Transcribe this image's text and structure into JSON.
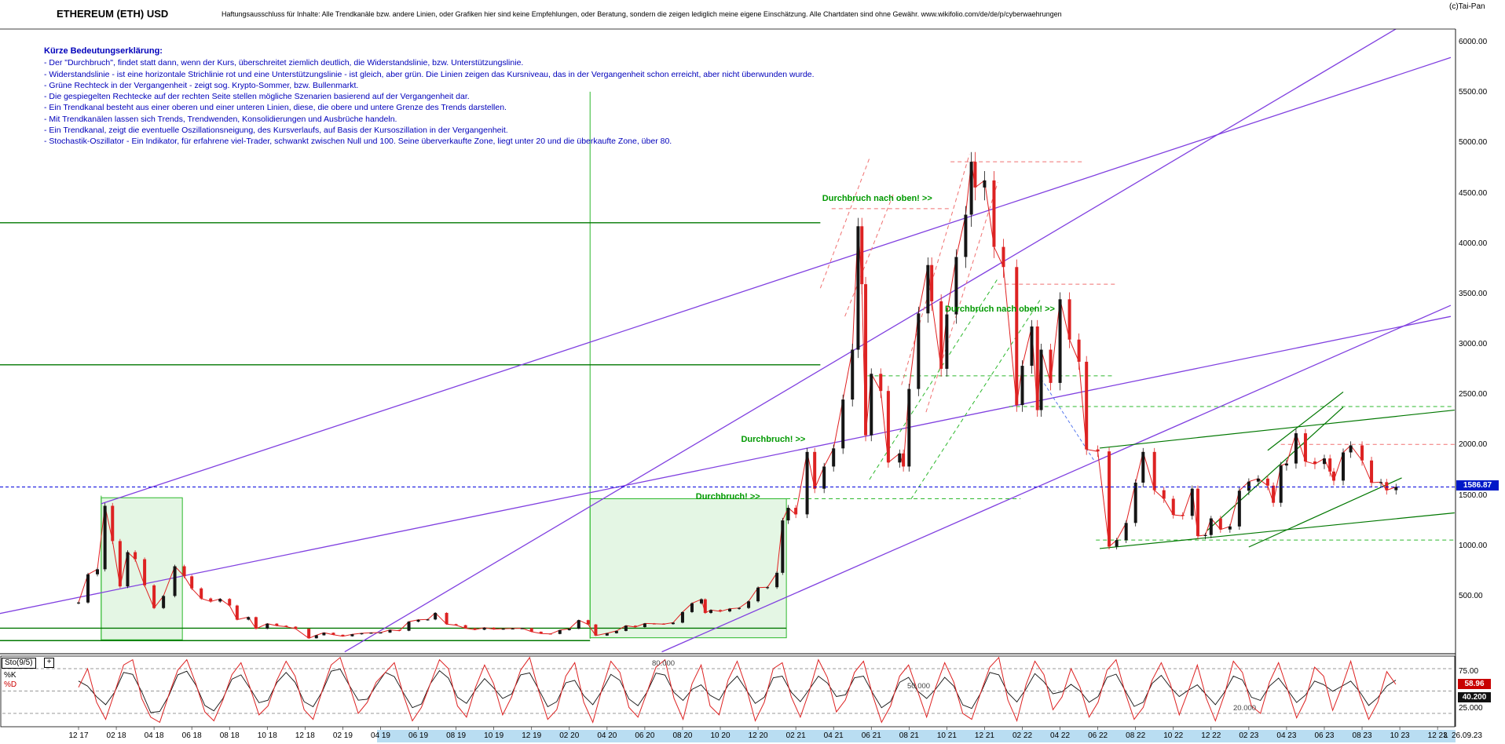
{
  "header": {
    "title": "ETHEREUM (ETH) USD",
    "disclaimer": "Haftungsausschluss für Inhalte: Alle Trendkanäle bzw. andere Linien, oder Grafiken hier sind keine Empfehlungen, oder Beratung, sondern die zeigen lediglich meine eigene Einschätzung. Alle Chartdaten sind ohne Gewähr.  www.wikifolio.com/de/de/p/cyberwaehrungen",
    "copyright": "(c)Tai-Pan"
  },
  "legend": {
    "heading": "Kürze Bedeutungserklärung:",
    "lines": [
      "- Der \"Durchbruch\", findet statt dann, wenn der Kurs, überschreitet ziemlich deutlich, die Widerstandslinie, bzw. Unterstützungslinie.",
      "- Widerstandslinie - ist eine horizontale Strichlinie rot und eine Unterstützungslinie - ist gleich, aber grün. Die Linien zeigen das Kursniveau, das in der Vergangenheit schon erreicht, aber nicht überwunden wurde.",
      "- Grüne Rechteck in der Vergangenheit - zeigt sog. Krypto-Sommer, bzw. Bullenmarkt.",
      "- Die gespiegelten Rechtecke auf der rechten Seite stellen mögliche Szenarien basierend auf der Vergangenheit dar.",
      "- Ein Trendkanal besteht aus einer oberen und einer unteren Linien, diese, die obere und untere Grenze des Trends darstellen.",
      "- Mit Trendkanälen lassen sich Trends, Trendwenden, Konsolidierungen und Ausbrüche handeln.",
      "- Ein Trendkanal, zeigt die eventuelle Oszillationsneigung, des Kursverlaufs, auf Basis der Kursoszillation in der Vergangenheit.",
      "- Stochastik-Oszillator - Ein Indikator, für erfahrene viel-Trader, schwankt zwischen Null und 100. Seine überverkaufte Zone, liegt unter 20 und die überkaufte Zone, über 80."
    ]
  },
  "colors": {
    "violet": "#8040e0",
    "green_dark": "#007700",
    "green_bright": "#2db82d",
    "rect_fill": "#e4f6e4",
    "red_dash": "#f07070",
    "blue_line": "#0000dd",
    "candle_up": "#151515",
    "candle_down": "#dd2222",
    "close_line": "#e02020",
    "osc_k": "#dd2222",
    "osc_d": "#111111",
    "annotation": "#009900",
    "badge_blue": "#0018c8",
    "badge_red": "#c80000",
    "badge_black": "#111111",
    "scrollbar": "#b9ddf2"
  },
  "chart_data": {
    "type": "candlestick",
    "title": "ETHEREUM (ETH) USD",
    "x_axis": {
      "months_start": "2017-12",
      "tick_labels": [
        "12 17",
        "02 18",
        "04 18",
        "06 18",
        "08 18",
        "10 18",
        "12 18",
        "02 19",
        "04 19",
        "06 19",
        "08 19",
        "10 19",
        "12 19",
        "02 20",
        "04 20",
        "06 20",
        "08 20",
        "10 20",
        "12 20",
        "02 21",
        "04 21",
        "06 21",
        "08 21",
        "10 21",
        "12 21",
        "02 22",
        "04 22",
        "06 22",
        "08 22",
        "10 22",
        "12 22",
        "02 23",
        "04 23",
        "06 23",
        "08 23",
        "10 23",
        "12 23"
      ],
      "extra_labels": [
        "L",
        "26.09.23"
      ]
    },
    "y_axis": {
      "unit": "USD",
      "range": [
        0,
        6200
      ],
      "tick_labels": [
        "6000.00",
        "5500.00",
        "5000.00",
        "4500.00",
        "4000.00",
        "3500.00",
        "3000.00",
        "2500.00",
        "2000.00",
        "1500.00",
        "1000.00",
        "500.00"
      ]
    },
    "last_price": "1586.87",
    "series": {
      "name": "ETHEREUM (ETH) USD",
      "points": [
        [
          0,
          440
        ],
        [
          0.5,
          720
        ],
        [
          1,
          770
        ],
        [
          1.4,
          1400
        ],
        [
          1.8,
          1050
        ],
        [
          2.2,
          600
        ],
        [
          2.6,
          940
        ],
        [
          3,
          870
        ],
        [
          3.5,
          610
        ],
        [
          4,
          385
        ],
        [
          4.5,
          505
        ],
        [
          5.1,
          800
        ],
        [
          5.6,
          700
        ],
        [
          6,
          580
        ],
        [
          6.5,
          480
        ],
        [
          7,
          450
        ],
        [
          7.5,
          475
        ],
        [
          8,
          410
        ],
        [
          8.4,
          270
        ],
        [
          9,
          295
        ],
        [
          9.4,
          180
        ],
        [
          10,
          230
        ],
        [
          10.5,
          210
        ],
        [
          11,
          200
        ],
        [
          11.5,
          180
        ],
        [
          12.2,
          85
        ],
        [
          12.6,
          115
        ],
        [
          13,
          140
        ],
        [
          13.5,
          120
        ],
        [
          14,
          105
        ],
        [
          14.5,
          125
        ],
        [
          15,
          135
        ],
        [
          15.5,
          140
        ],
        [
          16,
          142
        ],
        [
          16.5,
          168
        ],
        [
          17,
          160
        ],
        [
          17.5,
          250
        ],
        [
          18,
          268
        ],
        [
          18.5,
          272
        ],
        [
          18.9,
          337
        ],
        [
          19.5,
          225
        ],
        [
          20,
          215
        ],
        [
          20.5,
          185
        ],
        [
          21,
          170
        ],
        [
          21.5,
          190
        ],
        [
          22,
          175
        ],
        [
          22.5,
          180
        ],
        [
          23,
          182
        ],
        [
          23.5,
          185
        ],
        [
          24,
          150
        ],
        [
          24.5,
          132
        ],
        [
          25,
          128
        ],
        [
          25.5,
          166
        ],
        [
          26,
          180
        ],
        [
          26.5,
          265
        ],
        [
          27,
          222
        ],
        [
          27.4,
          112
        ],
        [
          28,
          135
        ],
        [
          28.5,
          158
        ],
        [
          29,
          210
        ],
        [
          29.5,
          196
        ],
        [
          30,
          232
        ],
        [
          30.5,
          230
        ],
        [
          31,
          226
        ],
        [
          31.5,
          240
        ],
        [
          32,
          345
        ],
        [
          32.5,
          432
        ],
        [
          33,
          472
        ],
        [
          33.2,
          337
        ],
        [
          33.5,
          365
        ],
        [
          34,
          352
        ],
        [
          34.5,
          378
        ],
        [
          35,
          386
        ],
        [
          35.5,
          452
        ],
        [
          36,
          588
        ],
        [
          36.5,
          592
        ],
        [
          37,
          735
        ],
        [
          37.3,
          1255
        ],
        [
          37.6,
          1380
        ],
        [
          38,
          1315
        ],
        [
          38.6,
          1935
        ],
        [
          39,
          1570
        ],
        [
          39.5,
          1790
        ],
        [
          40,
          1970
        ],
        [
          40.5,
          2455
        ],
        [
          41,
          2950
        ],
        [
          41.3,
          4175
        ],
        [
          41.5,
          3600
        ],
        [
          41.7,
          2100
        ],
        [
          42,
          2710
        ],
        [
          42.5,
          2540
        ],
        [
          42.9,
          1830
        ],
        [
          43.5,
          1920
        ],
        [
          43.7,
          1790
        ],
        [
          44,
          2560
        ],
        [
          44.5,
          3310
        ],
        [
          45,
          3790
        ],
        [
          45.2,
          3430
        ],
        [
          45.7,
          2760
        ],
        [
          46,
          3300
        ],
        [
          46.5,
          3870
        ],
        [
          47,
          4290
        ],
        [
          47.3,
          4815
        ],
        [
          47.5,
          4560
        ],
        [
          48,
          4630
        ],
        [
          48.5,
          3970
        ],
        [
          49,
          3770
        ],
        [
          49.7,
          2400
        ],
        [
          50,
          2790
        ],
        [
          50.5,
          3180
        ],
        [
          50.8,
          2350
        ],
        [
          51,
          2950
        ],
        [
          51.5,
          2620
        ],
        [
          52,
          3450
        ],
        [
          52.5,
          3050
        ],
        [
          53,
          2830
        ],
        [
          53.4,
          1960
        ],
        [
          54,
          1940
        ],
        [
          54.6,
          995
        ],
        [
          55,
          1060
        ],
        [
          55.5,
          1230
        ],
        [
          56,
          1630
        ],
        [
          56.4,
          1935
        ],
        [
          57,
          1555
        ],
        [
          57.5,
          1470
        ],
        [
          58,
          1310
        ],
        [
          58.5,
          1300
        ],
        [
          59,
          1570
        ],
        [
          59.3,
          1100
        ],
        [
          59.7,
          1110
        ],
        [
          60,
          1275
        ],
        [
          60.5,
          1165
        ],
        [
          61,
          1195
        ],
        [
          61.5,
          1550
        ],
        [
          62,
          1640
        ],
        [
          62.5,
          1670
        ],
        [
          63,
          1600
        ],
        [
          63.3,
          1430
        ],
        [
          63.7,
          1800
        ],
        [
          64,
          1820
        ],
        [
          64.5,
          2120
        ],
        [
          65,
          1840
        ],
        [
          65.5,
          1815
        ],
        [
          66,
          1870
        ],
        [
          66.3,
          1740
        ],
        [
          66.5,
          1650
        ],
        [
          67,
          1930
        ],
        [
          67.4,
          2000
        ],
        [
          68,
          1850
        ],
        [
          68.5,
          1630
        ],
        [
          69,
          1635
        ],
        [
          69.3,
          1555
        ],
        [
          69.8,
          1586.87
        ]
      ]
    },
    "overlays": {
      "current_price_line": {
        "price": 1586.87,
        "style": "dashed-blue"
      },
      "trend_lines_violet": [
        {
          "from": [
            1.2,
            1420
          ],
          "to": [
            72.7,
            5850
          ]
        },
        {
          "from": [
            -4.2,
            330
          ],
          "to": [
            72.7,
            3280
          ]
        },
        {
          "from": [
            30.9,
            -50
          ],
          "to": [
            72.7,
            3390
          ]
        },
        {
          "from": [
            14.1,
            -50
          ],
          "to": [
            70.3,
            6190
          ]
        }
      ],
      "support_lines_green": [
        {
          "price": 4210,
          "m1": -4.2,
          "m2": 39.3
        },
        {
          "price": 2800,
          "m1": -4.2,
          "m2": 39.3
        },
        {
          "price": 185,
          "m1": -4.2,
          "m2": 37.5
        },
        {
          "price": 62,
          "m1": -4.2,
          "m2": 27.1
        }
      ],
      "dashed_green_h": [
        {
          "price": 2385,
          "m1": 49.3,
          "m2": 72.9
        },
        {
          "price": 1060,
          "m1": 53.9,
          "m2": 72.9
        },
        {
          "price": 2690,
          "m1": 41.8,
          "m2": 54.9
        },
        {
          "price": 1470,
          "m1": 37.5,
          "m2": 49.9
        }
      ],
      "dashed_red_h": [
        {
          "price": 4815,
          "m1": 46.2,
          "m2": 53.3
        },
        {
          "price": 3600,
          "m1": 48.7,
          "m2": 54.9
        },
        {
          "price": 2010,
          "m1": 63.7,
          "m2": 72.9
        },
        {
          "price": 4350,
          "m1": 39.9,
          "m2": 46.2
        }
      ],
      "steep_dashed_pink": [
        {
          "from": [
            43.6,
            2600
          ],
          "to": [
            47.2,
            4890
          ]
        },
        {
          "from": [
            44.9,
            2330
          ],
          "to": [
            48.7,
            4610
          ]
        },
        {
          "from": [
            39.3,
            3560
          ],
          "to": [
            41.9,
            4850
          ]
        },
        {
          "from": [
            40.6,
            3280
          ],
          "to": [
            43.2,
            4510
          ]
        }
      ],
      "steep_dashed_green": [
        {
          "from": [
            41.9,
            1660
          ],
          "to": [
            48.7,
            3655
          ]
        },
        {
          "from": [
            44.1,
            1466
          ],
          "to": [
            51.0,
            3460
          ]
        }
      ],
      "dashed_blue_segments": [
        {
          "from": [
            51.0,
            2660
          ],
          "to": [
            53.8,
            1850
          ]
        }
      ],
      "green_trend_lines": [
        {
          "from": [
            54.1,
            1973
          ],
          "to": [
            72.9,
            2350
          ]
        },
        {
          "from": [
            54.1,
            976
          ],
          "to": [
            72.9,
            1330
          ]
        },
        {
          "from": [
            59.8,
            1155
          ],
          "to": [
            67.0,
            2380
          ]
        },
        {
          "from": [
            62.0,
            991
          ],
          "to": [
            70.1,
            1677
          ]
        },
        {
          "from": [
            63.0,
            1950
          ],
          "to": [
            67.0,
            2530
          ]
        }
      ],
      "vertical_green_lines": [
        {
          "m": 1.2,
          "p1": 70,
          "p2": 1500
        },
        {
          "m": 27.1,
          "p1": 80,
          "p2": 5510
        }
      ],
      "rects_green": [
        {
          "m1": 1.2,
          "m2": 5.5,
          "p1": 70,
          "p2": 1480
        },
        {
          "m1": 27.1,
          "m2": 37.5,
          "p1": 90,
          "p2": 1470
        }
      ]
    },
    "annotations": [
      {
        "text": "Durchbruch nach oben! >>",
        "m": 39.4,
        "p": 4440
      },
      {
        "text": "Durchbruch nach oben! >>",
        "m": 45.9,
        "p": 3340
      },
      {
        "text": "Durchbruch! >>",
        "m": 35.1,
        "p": 2050
      },
      {
        "text": "Durchbruch! >>",
        "m": 32.7,
        "p": 1480
      }
    ],
    "oscillator": {
      "label": "Sto(9/5)",
      "plus_button": "+",
      "k_label": "%K",
      "d_label": "%D",
      "k_badge": "58.96",
      "d_badge": "40.200",
      "levels": [
        {
          "value": 80,
          "label": "80.000"
        },
        {
          "value": 50,
          "label": "50.000"
        },
        {
          "value": 20,
          "label": "20.000"
        }
      ],
      "scale_labels": [
        {
          "value": 75,
          "label": "75.00"
        },
        {
          "value": 25,
          "label": "25.000"
        }
      ],
      "values": [
        55,
        80,
        35,
        12,
        48,
        85,
        92,
        40,
        15,
        8,
        45,
        78,
        92,
        60,
        22,
        10,
        38,
        72,
        88,
        55,
        18,
        30,
        65,
        90,
        70,
        25,
        12,
        50,
        85,
        95,
        58,
        20,
        35,
        62,
        75,
        88,
        45,
        10,
        28,
        60,
        92,
        80,
        30,
        15,
        55,
        85,
        60,
        18,
        42,
        78,
        95,
        50,
        12,
        25,
        70,
        88,
        35,
        8,
        52,
        90,
        75,
        28,
        15,
        48,
        82,
        92,
        40,
        12,
        60,
        85,
        30,
        18,
        65,
        90,
        55,
        10,
        35,
        80,
        88,
        42,
        15,
        50,
        92,
        68,
        22,
        38,
        75,
        90,
        45,
        8,
        30,
        70,
        85,
        50,
        15,
        55,
        88,
        62,
        20,
        12,
        48,
        82,
        95,
        38,
        10,
        58,
        90,
        72,
        25,
        42,
        80,
        55,
        15,
        35,
        78,
        92,
        48,
        12,
        28,
        65,
        88,
        60,
        18,
        50,
        85,
        40,
        10,
        45,
        90,
        75,
        30,
        20,
        62,
        88,
        52,
        14,
        38,
        82,
        70,
        24,
        55,
        90,
        45,
        12,
        35,
        76,
        59
      ]
    }
  }
}
